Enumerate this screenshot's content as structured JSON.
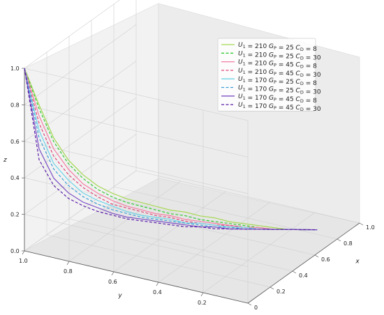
{
  "chart_data": {
    "type": "line",
    "projection": "3d",
    "title": "",
    "xlabel": "x",
    "ylabel": "y",
    "zlabel": "z",
    "xlim": [
      0,
      1.0
    ],
    "ylim": [
      0,
      1.0
    ],
    "zlim": [
      0,
      1.0
    ],
    "x_ticks": [
      "0",
      "0.2",
      "0.4",
      "0.6",
      "0.8",
      "1.0"
    ],
    "y_ticks": [
      "0.2",
      "0.4",
      "0.6",
      "0.8",
      "1.0"
    ],
    "z_ticks": [
      "0.0",
      "0.2",
      "0.4",
      "0.6",
      "0.8",
      "1.0"
    ],
    "grid": true,
    "legend_position": "upper-right",
    "series": [
      {
        "name": "U1 = 210 GP = 25 CD = 8",
        "U1": "210",
        "GP": "25",
        "CD": "8",
        "color": "#a6d854",
        "dash": "solid",
        "x": [
          0.0,
          0.6
        ],
        "z": [
          1.0,
          0.0
        ],
        "y": [
          1.0,
          0.0
        ],
        "z_at": [
          1.0,
          0.8,
          0.62,
          0.5,
          0.42,
          0.36,
          0.32,
          0.29,
          0.27,
          0.25,
          0.23,
          0.22,
          0.2,
          0.19,
          0.17,
          0.16,
          0.15,
          0.14,
          0.13,
          0.13,
          0.13
        ]
      },
      {
        "name": "U1 = 210 GP = 25 CD = 30",
        "U1": "210",
        "GP": "25",
        "CD": "30",
        "color": "#33cc33",
        "dash": "dashed",
        "z_at": [
          1.0,
          0.78,
          0.6,
          0.48,
          0.4,
          0.34,
          0.3,
          0.27,
          0.25,
          0.23,
          0.21,
          0.2,
          0.18,
          0.17,
          0.16,
          0.15,
          0.14,
          0.13,
          0.13,
          0.13,
          0.13
        ]
      },
      {
        "name": "U1 = 210 GP = 45 CD = 8",
        "U1": "210",
        "GP": "45",
        "CD": "8",
        "color": "#f47fa3",
        "dash": "solid",
        "z_at": [
          1.0,
          0.74,
          0.56,
          0.45,
          0.37,
          0.32,
          0.28,
          0.25,
          0.23,
          0.21,
          0.2,
          0.18,
          0.17,
          0.16,
          0.15,
          0.14,
          0.14,
          0.13,
          0.13,
          0.13,
          0.13
        ]
      },
      {
        "name": "U1 = 210 GP = 45 CD = 30",
        "U1": "210",
        "GP": "45",
        "CD": "30",
        "color": "#e0457b",
        "dash": "dashed",
        "z_at": [
          1.0,
          0.7,
          0.52,
          0.42,
          0.35,
          0.3,
          0.26,
          0.24,
          0.22,
          0.2,
          0.19,
          0.17,
          0.16,
          0.15,
          0.15,
          0.14,
          0.13,
          0.13,
          0.13,
          0.13,
          0.13
        ]
      },
      {
        "name": "U1 = 170 GP = 25 CD = 8",
        "U1": "170",
        "GP": "25",
        "CD": "8",
        "color": "#6fd3e8",
        "dash": "solid",
        "z_at": [
          1.0,
          0.66,
          0.48,
          0.39,
          0.32,
          0.28,
          0.25,
          0.22,
          0.2,
          0.19,
          0.18,
          0.16,
          0.16,
          0.15,
          0.14,
          0.14,
          0.13,
          0.13,
          0.13,
          0.13,
          0.13
        ]
      },
      {
        "name": "U1 = 170 GP = 25 CD = 30",
        "U1": "170",
        "GP": "25",
        "CD": "30",
        "color": "#3a9fd8",
        "dash": "dashed",
        "z_at": [
          1.0,
          0.62,
          0.45,
          0.36,
          0.3,
          0.26,
          0.23,
          0.21,
          0.19,
          0.18,
          0.17,
          0.16,
          0.15,
          0.14,
          0.14,
          0.13,
          0.13,
          0.13,
          0.13,
          0.13,
          0.13
        ]
      },
      {
        "name": "U1 = 170 GP = 45 CD = 8",
        "U1": "170",
        "GP": "45",
        "CD": "8",
        "color": "#7b4fc4",
        "dash": "solid",
        "z_at": [
          1.0,
          0.56,
          0.4,
          0.32,
          0.27,
          0.24,
          0.21,
          0.19,
          0.18,
          0.17,
          0.16,
          0.15,
          0.14,
          0.14,
          0.13,
          0.13,
          0.13,
          0.13,
          0.13,
          0.13,
          0.13
        ]
      },
      {
        "name": "U1 = 170 GP = 45 CD = 30",
        "U1": "170",
        "GP": "45",
        "CD": "30",
        "color": "#5a1ea8",
        "dash": "dashed",
        "z_at": [
          1.0,
          0.5,
          0.36,
          0.29,
          0.25,
          0.22,
          0.2,
          0.18,
          0.17,
          0.16,
          0.15,
          0.14,
          0.14,
          0.13,
          0.13,
          0.13,
          0.13,
          0.13,
          0.13,
          0.13,
          0.13
        ]
      }
    ],
    "path": {
      "x_start": 0.0,
      "x_end": 0.62,
      "y_start": 1.0,
      "y_end": 0.0
    }
  }
}
